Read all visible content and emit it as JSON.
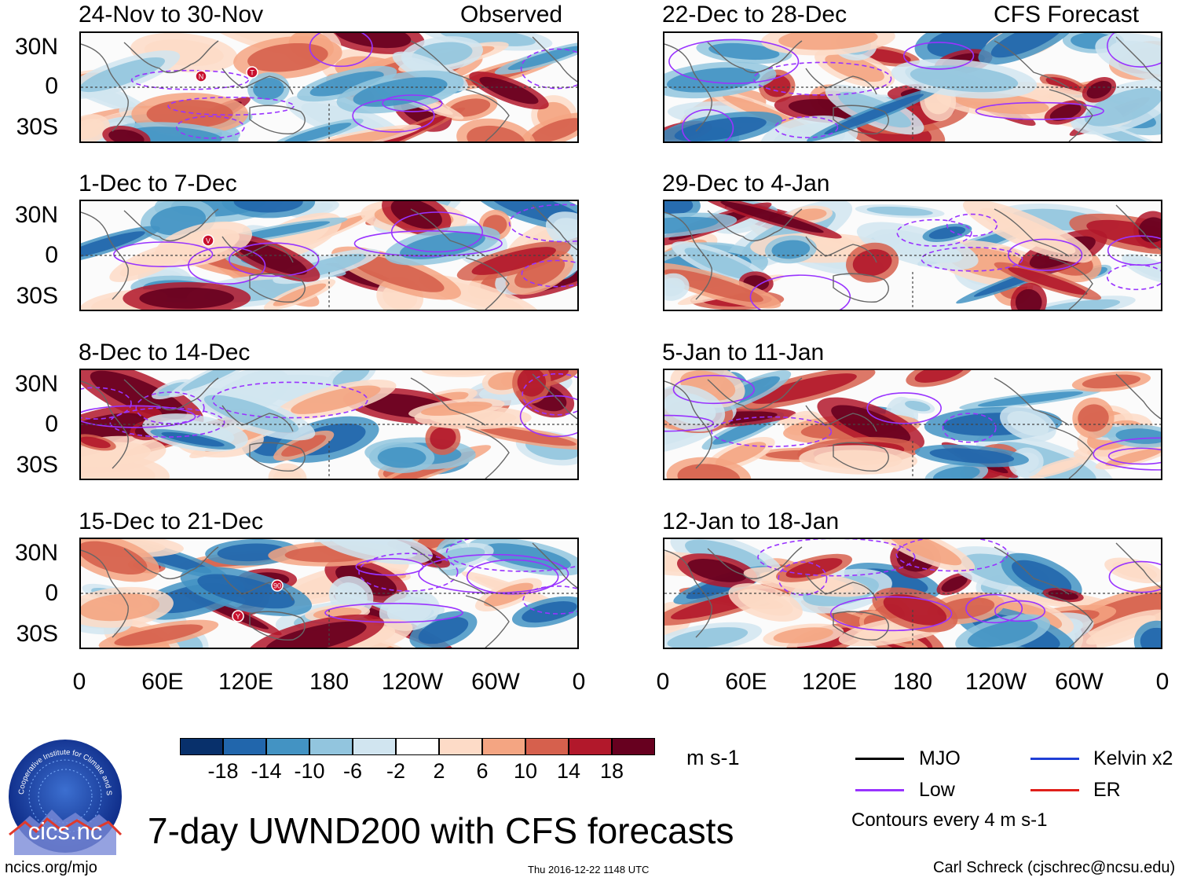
{
  "header": {
    "observed_label": "Observed",
    "forecast_label": "CFS Forecast"
  },
  "panels": {
    "p1": {
      "title": "24-Nov to 30-Nov"
    },
    "p2": {
      "title": "1-Dec to 7-Dec"
    },
    "p3": {
      "title": "8-Dec to 14-Dec"
    },
    "p4": {
      "title": "15-Dec to 21-Dec"
    },
    "p5": {
      "title": "22-Dec to 28-Dec"
    },
    "p6": {
      "title": "29-Dec to 4-Jan"
    },
    "p7": {
      "title": "5-Jan to 11-Jan"
    },
    "p8": {
      "title": "12-Jan to 18-Jan"
    }
  },
  "axes": {
    "lat_labels": [
      "30N",
      "0",
      "30S"
    ],
    "lon_labels": [
      "0",
      "60E",
      "120E",
      "180",
      "120W",
      "60W",
      "0"
    ]
  },
  "colorbar": {
    "colors": [
      "#08306b",
      "#2166ac",
      "#4393c3",
      "#92c5de",
      "#d1e5f0",
      "#ffffff",
      "#fddbc7",
      "#f4a582",
      "#d6604d",
      "#b2182b",
      "#67001f"
    ],
    "tick_labels": [
      "-18",
      "-14",
      "-10",
      "-6",
      "-2",
      "2",
      "6",
      "10",
      "14",
      "18"
    ],
    "units": "m s-1"
  },
  "legend": {
    "mjo": "MJO",
    "low": "Low",
    "kelvin": "Kelvin x2",
    "er": "ER",
    "mjo_color": "#000000",
    "low_color": "#9933ff",
    "kelvin_color": "#1f3fd6",
    "er_color": "#e0201b",
    "contour_note": "Contours every 4 m s-1"
  },
  "footer": {
    "title": "7-day UWND200 with CFS forecasts",
    "left": "ncics.org/mjo",
    "center": "Thu 2016-12-22 1148 UTC",
    "right": "Carl Schreck (cjschrec@ncsu.edu)",
    "logo_text": "cics.nc",
    "logo_ring_text": "Cooperative Institute for Climate and Satellites"
  },
  "storms": [
    {
      "panel": "p1",
      "label": "N"
    },
    {
      "panel": "p1",
      "label": "T"
    },
    {
      "panel": "p2",
      "label": "V"
    },
    {
      "panel": "p4",
      "label": "90"
    },
    {
      "panel": "p4",
      "label": "Y"
    }
  ]
}
